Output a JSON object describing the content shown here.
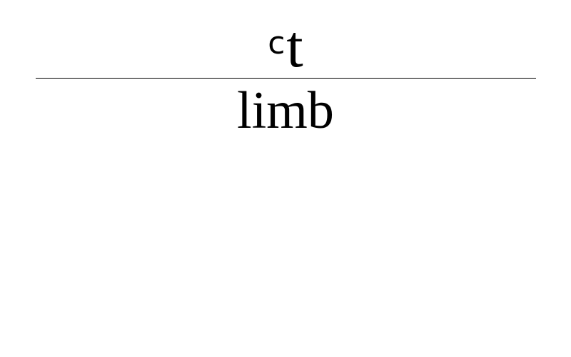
{
  "numerator": {
    "superscript": "c",
    "base": "t"
  },
  "denominator": {
    "text": "limb"
  },
  "colors": {
    "background": "#ffffff",
    "text": "#000000",
    "rule": "#000000"
  }
}
